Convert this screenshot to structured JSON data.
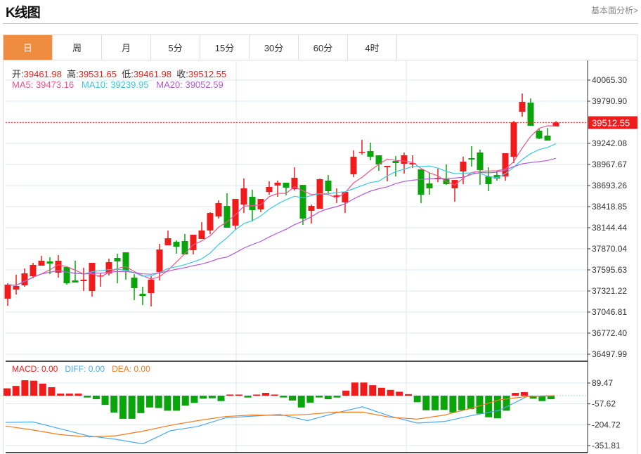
{
  "header": {
    "title": "K线图",
    "more_link": "基本面分析>"
  },
  "tabs": [
    {
      "label": "日",
      "active": true
    },
    {
      "label": "周",
      "active": false
    },
    {
      "label": "月",
      "active": false
    },
    {
      "label": "5分",
      "active": false
    },
    {
      "label": "15分",
      "active": false
    },
    {
      "label": "30分",
      "active": false
    },
    {
      "label": "60分",
      "active": false
    },
    {
      "label": "4时",
      "active": false
    }
  ],
  "ohlc_info": {
    "open_label": "开:",
    "open": "39461.98",
    "high_label": "高:",
    "high": "39531.65",
    "low_label": "低:",
    "low": "39461.98",
    "close_label": "收:",
    "close": "39512.55"
  },
  "ma_info": {
    "ma5": "MA5: 39473.16",
    "ma10": "MA10: 39239.95",
    "ma20": "MA20: 39052.59"
  },
  "macd_info": {
    "macd": "MACD: 0.00",
    "diff": "DIFF: 0.00",
    "dea": "DEA: 0.00"
  },
  "colors": {
    "up": "#f01c1c",
    "down": "#0aa50a",
    "ma5": "#f0548c",
    "ma10": "#3cc8e0",
    "ma20": "#b45ad2",
    "diff": "#4aa8f0",
    "dea": "#f57a1e",
    "accent": "#f08c3f"
  },
  "chart_data": [
    {
      "type": "candlestick",
      "title": "K线图",
      "ylim": [
        36440,
        40130
      ],
      "y_ticks": [
        "40065.30",
        "39790.90",
        "39242.08",
        "38967.67",
        "38693.26",
        "38418.85",
        "38144.44",
        "37870.04",
        "37595.63",
        "37321.22",
        "37046.81",
        "36772.40",
        "36497.99"
      ],
      "y_tick_values": [
        40065.3,
        39790.9,
        39242.08,
        38967.67,
        38693.26,
        38418.85,
        38144.44,
        37870.04,
        37595.63,
        37321.22,
        37046.81,
        36772.4,
        36497.99
      ],
      "current_price": "39512.55",
      "ohlc": [
        [
          37221,
          37422,
          37129,
          37403
        ],
        [
          37339,
          37532,
          37275,
          37385
        ],
        [
          37394,
          37614,
          37376,
          37550
        ],
        [
          37513,
          37687,
          37486,
          37660
        ],
        [
          37650,
          37778,
          37650,
          37715
        ],
        [
          37705,
          37760,
          37541,
          37678
        ],
        [
          37559,
          37788,
          37495,
          37715
        ],
        [
          37632,
          37632,
          37403,
          37422
        ],
        [
          37458,
          37715,
          37431,
          37431
        ],
        [
          37449,
          37623,
          37321,
          37468
        ],
        [
          37321,
          37687,
          37248,
          37687
        ],
        [
          37513,
          37550,
          37376,
          37522
        ],
        [
          37550,
          37742,
          37522,
          37696
        ],
        [
          37751,
          37806,
          37422,
          37705
        ],
        [
          37824,
          37824,
          37468,
          37586
        ],
        [
          37495,
          37541,
          37202,
          37358
        ],
        [
          37285,
          37376,
          37138,
          37257
        ],
        [
          37294,
          37513,
          37120,
          37468
        ],
        [
          37568,
          37934,
          37458,
          37861
        ],
        [
          37916,
          38108,
          37916,
          38007
        ],
        [
          37961,
          37980,
          37806,
          37897
        ],
        [
          37971,
          38062,
          37797,
          37797
        ],
        [
          37852,
          38053,
          37797,
          38053
        ],
        [
          37998,
          38218,
          37998,
          38108
        ],
        [
          38108,
          38346,
          38062,
          38336
        ],
        [
          38291,
          38501,
          38263,
          38465
        ],
        [
          38428,
          38593,
          38144,
          38144
        ],
        [
          38172,
          38519,
          38117,
          38519
        ],
        [
          38446,
          38785,
          38336,
          38657
        ],
        [
          38547,
          38638,
          38227,
          38373
        ],
        [
          38382,
          38519,
          38346,
          38519
        ],
        [
          38611,
          38748,
          38574,
          38675
        ],
        [
          38693,
          38757,
          38547,
          38730
        ],
        [
          38730,
          38730,
          38565,
          38666
        ],
        [
          38647,
          38931,
          38629,
          38794
        ],
        [
          38702,
          38702,
          38181,
          38263
        ],
        [
          38364,
          38446,
          38199,
          38428
        ],
        [
          38391,
          38785,
          38391,
          38776
        ],
        [
          38757,
          38830,
          38593,
          38620
        ],
        [
          38547,
          38657,
          38465,
          38565
        ],
        [
          38474,
          38611,
          38336,
          38611
        ],
        [
          38840,
          39151,
          38803,
          39068
        ],
        [
          39123,
          39288,
          39096,
          39132
        ],
        [
          39141,
          39251,
          39022,
          39068
        ],
        [
          39087,
          39087,
          38885,
          38968
        ],
        [
          38931,
          38949,
          38748,
          38949
        ],
        [
          39013,
          39077,
          38812,
          38986
        ],
        [
          38977,
          39123,
          38849,
          39087
        ],
        [
          38968,
          39087,
          38922,
          38986
        ],
        [
          38904,
          38904,
          38465,
          38574
        ],
        [
          38721,
          38858,
          38574,
          38657
        ],
        [
          38776,
          38913,
          38739,
          38794
        ],
        [
          38776,
          38968,
          38702,
          38711
        ],
        [
          38657,
          38766,
          38483,
          38766
        ],
        [
          38876,
          39068,
          38711,
          39004
        ],
        [
          39050,
          39205,
          38940,
          39032
        ],
        [
          39123,
          39160,
          38702,
          38894
        ],
        [
          38812,
          38931,
          38620,
          38711
        ],
        [
          38830,
          38885,
          38757,
          38785
        ],
        [
          38812,
          39114,
          38757,
          39114
        ],
        [
          39068,
          39535,
          38986,
          39516
        ],
        [
          39654,
          39891,
          39590,
          39782
        ],
        [
          39773,
          39827,
          39471,
          39471
        ],
        [
          39407,
          39434,
          39297,
          39306
        ],
        [
          39343,
          39443,
          39279,
          39279
        ],
        [
          39461.98,
          39531.65,
          39461.98,
          39512.55
        ]
      ],
      "ma_periods": [
        5,
        10,
        20
      ]
    },
    {
      "type": "bar+line",
      "title": "MACD",
      "ylim": [
        -370,
        160
      ],
      "y_ticks": [
        "89.47",
        "-57.62",
        "-204.72",
        "-351.81"
      ],
      "y_tick_values": [
        89.47,
        -57.62,
        -204.72,
        -351.81
      ],
      "histogram": [
        52,
        69,
        109,
        106,
        85,
        60,
        15,
        15,
        15,
        -13,
        -25,
        -65,
        -119,
        -163,
        -163,
        -123,
        -83,
        -87,
        -106,
        -106,
        -70,
        -51,
        -21,
        -18,
        -38,
        8,
        8,
        -13,
        8,
        20,
        8,
        -13,
        -34,
        -83,
        -49,
        -13,
        -25,
        -13,
        36,
        93,
        93,
        74,
        56,
        41,
        28,
        11,
        -46,
        -103,
        -103,
        -100,
        -119,
        -103,
        -95,
        -127,
        -152,
        -160,
        -106,
        20,
        25,
        -21,
        -38,
        -25
      ],
      "diff": [
        -188,
        -185,
        -234,
        -283,
        -307,
        -340,
        -247,
        -217,
        -157,
        -144,
        -132,
        -176,
        -123,
        -78,
        -144,
        -193,
        -181,
        -139,
        -103,
        -5,
        0
      ],
      "dea": [
        -214,
        -242,
        -275,
        -291,
        -283,
        -250,
        -209,
        -176,
        -147,
        -136,
        -139,
        -132,
        -116,
        -116,
        -152,
        -165,
        -136,
        -87,
        -29,
        -5,
        0
      ]
    }
  ]
}
